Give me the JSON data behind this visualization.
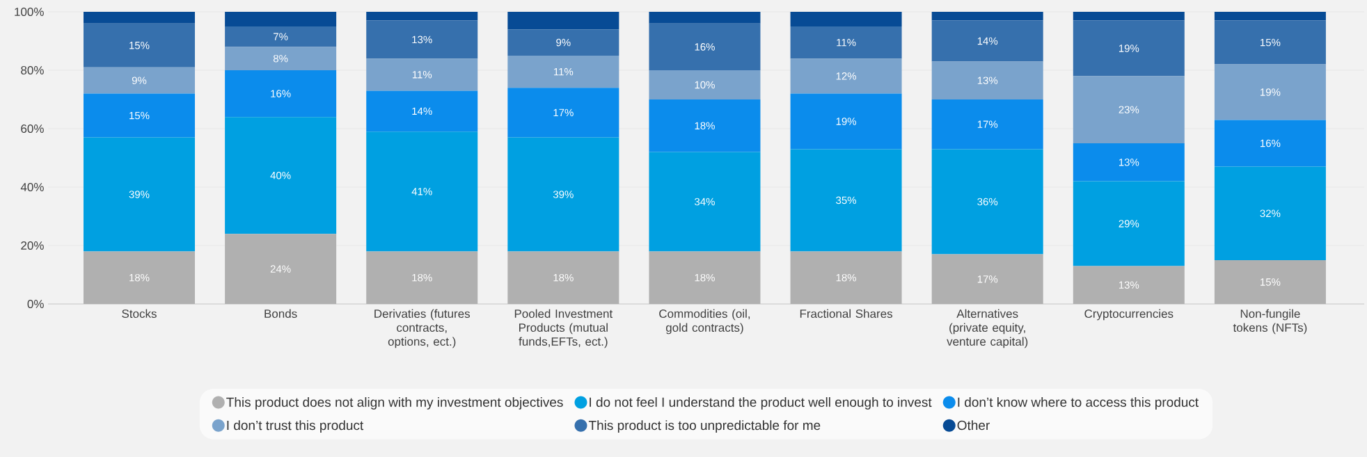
{
  "chart_data": {
    "type": "bar",
    "stacked": true,
    "categories": [
      "Stocks",
      "Bonds",
      "Derivaties (futures contracts, options, ect.)",
      "Pooled Investment Products (mutual funds,EFTs, ect.)",
      "Commodities (oil, gold contracts)",
      "Fractional Shares",
      "Alternatives (private equity, venture capital)",
      "Cryptocurrencies",
      "Non-fungile tokens (NFTs)"
    ],
    "series": [
      {
        "name": "This product does not align with my investment objectives",
        "color": "#b0b0b0",
        "values": [
          18,
          24,
          18,
          18,
          18,
          18,
          17,
          13,
          15
        ],
        "value_labels": [
          "18%",
          "24%",
          "18%",
          "18%",
          "18%",
          "18%",
          "17%",
          "13%",
          "15%"
        ]
      },
      {
        "name": "I do not feel I understand the product well enough to invest",
        "color": "#00a0e1",
        "values": [
          39,
          40,
          41,
          39,
          34,
          35,
          36,
          29,
          32
        ],
        "value_labels": [
          "39%",
          "40%",
          "41%",
          "39%",
          "34%",
          "35%",
          "36%",
          "29%",
          "32%"
        ]
      },
      {
        "name": "I don’t know where to access this product",
        "color": "#0b8cec",
        "values": [
          15,
          16,
          14,
          17,
          18,
          19,
          17,
          13,
          16
        ],
        "value_labels": [
          "15%",
          "16%",
          "14%",
          "17%",
          "18%",
          "19%",
          "17%",
          "13%",
          "16%"
        ]
      },
      {
        "name": "I don’t trust this product",
        "color": "#7aa3cc",
        "values": [
          9,
          8,
          11,
          11,
          10,
          12,
          13,
          23,
          19
        ],
        "value_labels": [
          "9%",
          "8%",
          "11%",
          "11%",
          "10%",
          "12%",
          "13%",
          "23%",
          "19%"
        ]
      },
      {
        "name": "This product is too unpredictable for me",
        "color": "#3670ad",
        "values": [
          15,
          7,
          13,
          9,
          16,
          11,
          14,
          19,
          15
        ],
        "value_labels": [
          "15%",
          "7%",
          "13%",
          "9%",
          "16%",
          "11%",
          "14%",
          "19%",
          "15%"
        ]
      },
      {
        "name": "Other",
        "color": "#074b95",
        "values": [
          4,
          5,
          3,
          6,
          4,
          5,
          3,
          3,
          3
        ]
      }
    ],
    "ylim": [
      0,
      100
    ],
    "yticks": [
      {
        "value": 0,
        "label": "0%"
      },
      {
        "value": 20,
        "label": "20%"
      },
      {
        "value": 40,
        "label": "40%"
      },
      {
        "value": 60,
        "label": "60%"
      },
      {
        "value": 80,
        "label": "80%"
      },
      {
        "value": 100,
        "label": "100%"
      }
    ],
    "grid": "y",
    "legend": "bottom"
  }
}
